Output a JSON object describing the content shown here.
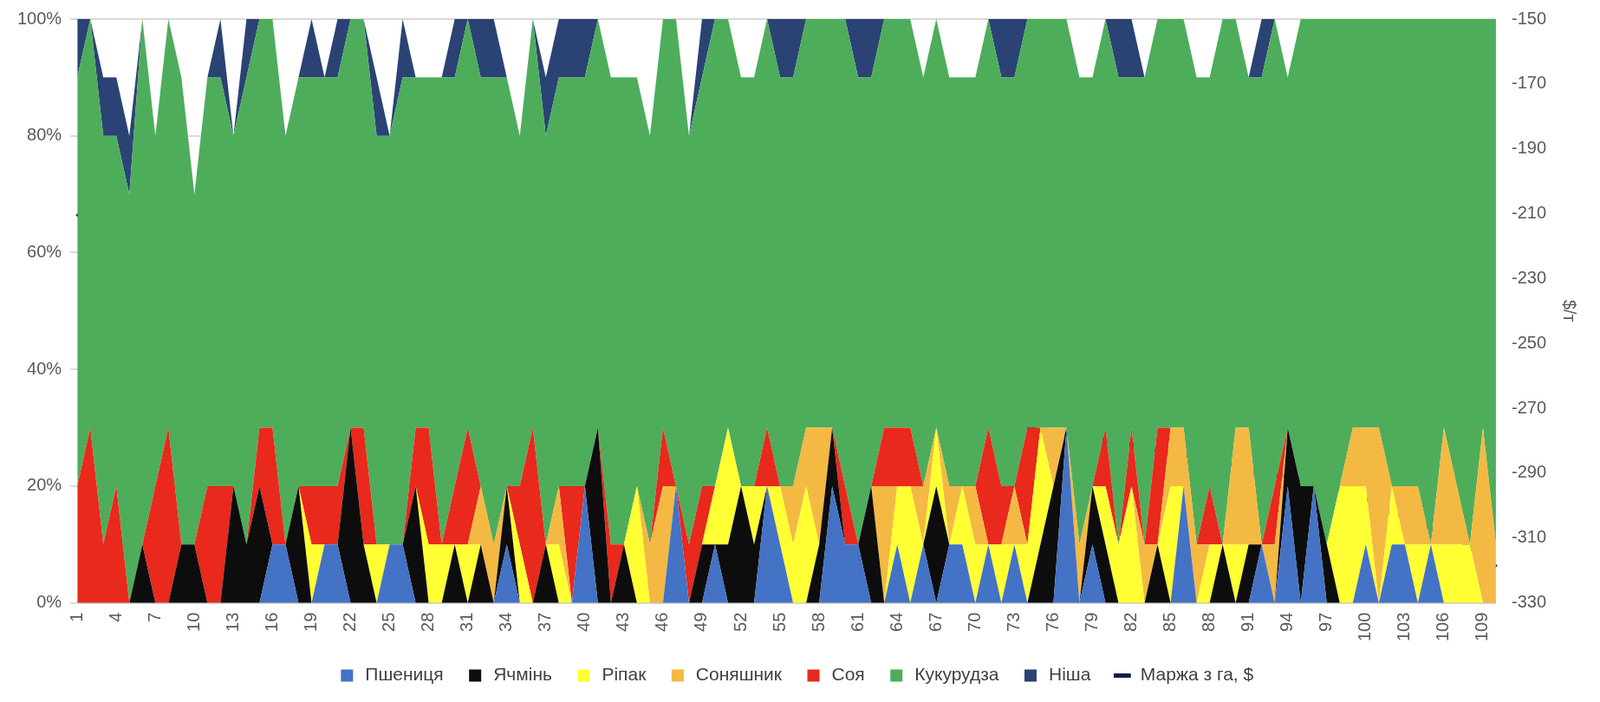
{
  "chart_data": {
    "type": "area",
    "stacked": true,
    "grid": true,
    "legend": "bottom",
    "categories": [
      "1",
      null,
      null,
      "4",
      null,
      null,
      "7",
      null,
      null,
      "10",
      null,
      null,
      "13",
      null,
      null,
      "16",
      null,
      null,
      "19",
      null,
      null,
      "22",
      null,
      null,
      "25",
      null,
      null,
      "28",
      null,
      null,
      "31",
      null,
      null,
      "34",
      null,
      null,
      "37",
      null,
      null,
      "40",
      null,
      null,
      "43",
      null,
      null,
      "46",
      null,
      null,
      "49",
      null,
      null,
      "52",
      null,
      null,
      "55",
      null,
      null,
      "58",
      null,
      null,
      "61",
      null,
      null,
      "64",
      null,
      null,
      "67",
      null,
      null,
      "70",
      null,
      null,
      "73",
      null,
      null,
      "76",
      null,
      null,
      "79",
      null,
      null,
      "82",
      null,
      null,
      "85",
      null,
      null,
      "88",
      null,
      null,
      "91",
      null,
      null,
      "94",
      null,
      null,
      "97",
      null,
      null,
      "100",
      null,
      null,
      "103",
      null,
      null,
      "106",
      null,
      null,
      "109",
      null
    ],
    "ylim": [
      0,
      100
    ],
    "yticks": [
      {
        "value": 0,
        "label": "0%"
      },
      {
        "value": 20,
        "label": "20%"
      },
      {
        "value": 40,
        "label": "40%"
      },
      {
        "value": 60,
        "label": "60%"
      },
      {
        "value": 80,
        "label": "80%"
      },
      {
        "value": 100,
        "label": "100%"
      }
    ],
    "y2lim": [
      -330,
      -150
    ],
    "y2ticks": [
      -330,
      -310,
      -290,
      -270,
      -250,
      -230,
      -210,
      -190,
      -170,
      -150
    ],
    "y2label": "$/т",
    "series": [
      {
        "name": "Пшениця",
        "color": "#4472C4",
        "values": [
          0,
          0,
          0,
          0,
          0,
          0,
          0,
          0,
          0,
          0,
          0,
          0,
          0,
          0,
          0,
          10,
          10,
          0,
          0,
          10,
          10,
          0,
          0,
          0,
          10,
          10,
          0,
          0,
          0,
          0,
          0,
          0,
          0,
          10,
          0,
          0,
          0,
          0,
          0,
          20,
          0,
          0,
          0,
          0,
          0,
          0,
          20,
          0,
          0,
          10,
          0,
          0,
          0,
          20,
          10,
          0,
          0,
          0,
          20,
          10,
          10,
          0,
          0,
          10,
          0,
          10,
          0,
          10,
          10,
          0,
          10,
          0,
          10,
          0,
          0,
          0,
          30,
          0,
          10,
          0,
          0,
          0,
          0,
          0,
          0,
          20,
          0,
          0,
          0,
          0,
          0,
          10,
          0,
          20,
          0,
          20,
          0,
          0,
          0,
          10,
          0,
          10,
          10,
          0,
          10,
          0,
          0,
          0,
          0,
          0
        ]
      },
      {
        "name": "Ячмінь",
        "color": "#0D0D0D",
        "values": [
          0,
          0,
          0,
          0,
          0,
          10,
          0,
          0,
          10,
          10,
          0,
          0,
          20,
          10,
          20,
          0,
          0,
          20,
          0,
          0,
          0,
          30,
          10,
          0,
          0,
          0,
          20,
          0,
          0,
          10,
          0,
          10,
          0,
          10,
          0,
          0,
          10,
          0,
          0,
          0,
          30,
          0,
          10,
          0,
          0,
          0,
          0,
          0,
          10,
          0,
          10,
          20,
          10,
          0,
          0,
          0,
          0,
          10,
          10,
          0,
          0,
          20,
          0,
          0,
          0,
          0,
          20,
          0,
          0,
          0,
          0,
          0,
          0,
          0,
          10,
          20,
          0,
          0,
          10,
          10,
          0,
          0,
          0,
          10,
          0,
          0,
          0,
          0,
          10,
          0,
          10,
          0,
          0,
          10,
          20,
          0,
          10,
          0,
          0,
          0,
          0,
          0,
          0,
          0,
          0,
          0,
          0,
          0,
          0,
          0
        ]
      },
      {
        "name": "Ріпак",
        "color": "#FFFF33",
        "values": [
          0,
          0,
          0,
          0,
          0,
          0,
          0,
          0,
          0,
          0,
          0,
          0,
          0,
          0,
          0,
          0,
          0,
          0,
          10,
          0,
          0,
          0,
          0,
          10,
          0,
          0,
          0,
          10,
          10,
          0,
          10,
          0,
          0,
          0,
          10,
          0,
          0,
          10,
          0,
          0,
          0,
          0,
          0,
          20,
          0,
          0,
          0,
          0,
          0,
          10,
          20,
          0,
          10,
          0,
          10,
          10,
          20,
          0,
          0,
          0,
          0,
          0,
          0,
          10,
          20,
          0,
          10,
          0,
          10,
          10,
          0,
          10,
          0,
          10,
          20,
          0,
          0,
          0,
          0,
          10,
          10,
          20,
          0,
          0,
          20,
          0,
          0,
          10,
          0,
          10,
          0,
          0,
          0,
          0,
          0,
          0,
          0,
          20,
          20,
          10,
          0,
          10,
          0,
          10,
          0,
          10,
          10,
          10,
          0,
          0
        ]
      },
      {
        "name": "Соняшник",
        "color": "#F4B942",
        "values": [
          0,
          0,
          0,
          0,
          0,
          0,
          0,
          0,
          0,
          0,
          0,
          0,
          0,
          0,
          0,
          0,
          0,
          0,
          0,
          0,
          0,
          0,
          0,
          0,
          0,
          0,
          0,
          0,
          0,
          0,
          0,
          10,
          10,
          0,
          0,
          0,
          0,
          10,
          0,
          0,
          0,
          0,
          0,
          0,
          10,
          20,
          0,
          0,
          0,
          0,
          0,
          0,
          0,
          0,
          0,
          10,
          10,
          20,
          0,
          0,
          0,
          0,
          20,
          0,
          0,
          10,
          0,
          10,
          0,
          10,
          0,
          0,
          10,
          0,
          0,
          10,
          0,
          10,
          0,
          0,
          0,
          0,
          10,
          0,
          10,
          10,
          10,
          0,
          0,
          20,
          20,
          0,
          10,
          0,
          0,
          0,
          0,
          0,
          10,
          10,
          30,
          0,
          10,
          10,
          0,
          20,
          10,
          0,
          30,
          10
        ]
      },
      {
        "name": "Соя",
        "color": "#E8291C",
        "values": [
          20,
          30,
          10,
          20,
          0,
          0,
          20,
          30,
          0,
          0,
          20,
          20,
          0,
          0,
          10,
          20,
          0,
          0,
          10,
          10,
          10,
          0,
          20,
          0,
          0,
          0,
          10,
          20,
          0,
          10,
          20,
          0,
          0,
          0,
          10,
          30,
          0,
          0,
          20,
          0,
          0,
          10,
          0,
          0,
          0,
          10,
          0,
          10,
          10,
          0,
          0,
          0,
          0,
          10,
          0,
          0,
          0,
          0,
          0,
          10,
          0,
          0,
          10,
          10,
          10,
          0,
          0,
          0,
          0,
          0,
          20,
          10,
          0,
          20,
          0,
          0,
          0,
          0,
          0,
          10,
          0,
          10,
          0,
          20,
          0,
          0,
          0,
          10,
          0,
          0,
          0,
          0,
          10,
          0,
          0,
          0,
          0,
          0,
          0,
          0,
          0,
          0,
          0,
          0,
          0,
          0,
          0,
          0,
          0,
          0
        ]
      },
      {
        "name": "Кукурудза",
        "color": "#4EAD5B",
        "values": [
          70,
          70,
          70,
          60,
          70,
          90,
          60,
          70,
          80,
          60,
          70,
          70,
          60,
          80,
          70,
          70,
          70,
          70,
          70,
          70,
          70,
          70,
          70,
          70,
          70,
          80,
          60,
          60,
          80,
          70,
          70,
          70,
          80,
          70,
          60,
          70,
          70,
          70,
          70,
          70,
          70,
          80,
          80,
          70,
          70,
          70,
          80,
          70,
          70,
          80,
          70,
          70,
          70,
          70,
          70,
          70,
          70,
          70,
          70,
          80,
          80,
          70,
          70,
          70,
          70,
          70,
          70,
          70,
          70,
          70,
          70,
          70,
          70,
          70,
          70,
          70,
          70,
          80,
          70,
          70,
          80,
          60,
          80,
          70,
          70,
          70,
          80,
          70,
          90,
          70,
          60,
          80,
          80,
          60,
          80,
          80,
          90,
          80,
          70,
          70,
          70,
          80,
          80,
          80,
          90,
          70,
          80,
          90,
          70,
          90
        ]
      },
      {
        "name": "Ніша",
        "color": "#2A4374",
        "values": [
          10,
          0,
          10,
          10,
          10,
          0,
          0,
          0,
          0,
          0,
          0,
          10,
          0,
          10,
          0,
          0,
          0,
          0,
          10,
          0,
          10,
          0,
          0,
          10,
          0,
          10,
          0,
          0,
          0,
          10,
          0,
          10,
          10,
          0,
          0,
          0,
          10,
          10,
          10,
          10,
          0,
          0,
          0,
          0,
          0,
          0,
          0,
          0,
          10,
          0,
          0,
          0,
          0,
          0,
          10,
          10,
          0,
          0,
          0,
          0,
          10,
          10,
          0,
          0,
          0,
          0,
          0,
          0,
          0,
          0,
          0,
          10,
          10,
          0,
          0,
          0,
          0,
          0,
          0,
          0,
          10,
          10,
          0,
          0,
          0,
          0,
          0,
          0,
          0,
          0,
          0,
          10,
          0,
          0,
          0,
          0,
          0,
          0,
          0,
          0,
          0,
          0,
          0,
          0,
          0,
          0,
          0,
          0,
          0,
          0
        ]
      },
      {
        "name": "Маржа з га, $",
        "color": "#0B1F4A",
        "type": "line",
        "axis": "y2",
        "values": [
          -210,
          -214,
          -215,
          -218,
          -218.5,
          -219,
          -222,
          -222.5,
          -223,
          -226,
          -226.5,
          -228,
          -231,
          -231.5,
          -232,
          -235,
          -235.5,
          -236,
          -238,
          -240,
          -241,
          -241.5,
          -242,
          -242.5,
          -244,
          -244.5,
          -245.5,
          -246.5,
          -247,
          -248,
          -248.5,
          -249,
          -249.5,
          -250,
          -250.5,
          -251,
          -251.5,
          -252,
          -253,
          -253.5,
          -254,
          -254.5,
          -255,
          -255.5,
          -256,
          -256.5,
          -257,
          -258,
          -258.5,
          -259,
          -259.5,
          -260,
          -261,
          -261.5,
          -262.5,
          -263,
          -264,
          -264.5,
          -265,
          -265.5,
          -266.5,
          -267,
          -267.5,
          -268,
          -270,
          -270.5,
          -271,
          -271.5,
          -272,
          -273,
          -273.5,
          -274,
          -275,
          -276,
          -277,
          -277.5,
          -278,
          -278.5,
          -279,
          -280,
          -280.5,
          -281,
          -282,
          -283,
          -284,
          -284.5,
          -285,
          -286,
          -287,
          -287.5,
          -290,
          -290.5,
          -290.5,
          -291,
          -292,
          -292.5,
          -294,
          -295,
          -296,
          -298,
          -301,
          -302,
          -304,
          -305,
          -307,
          -309,
          -310,
          -313,
          -315,
          -319
        ]
      }
    ]
  }
}
